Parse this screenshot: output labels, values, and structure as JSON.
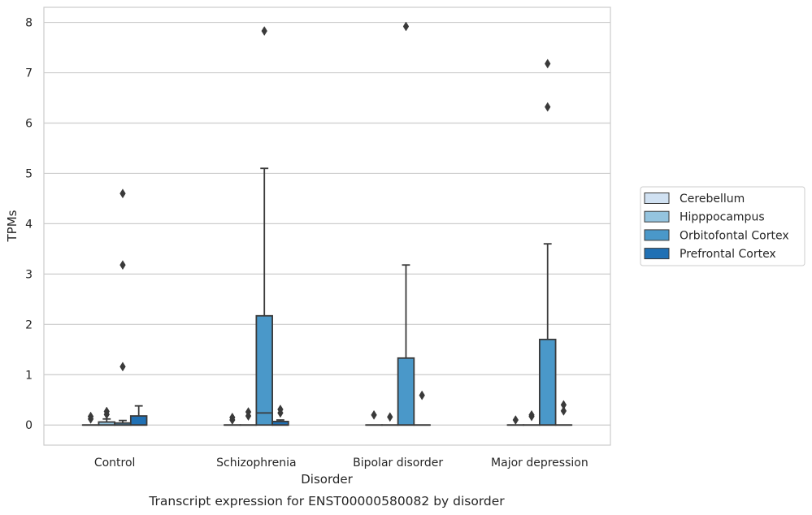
{
  "chart_data": {
    "type": "box",
    "title": "",
    "caption": "Transcript expression for ENST00000580082 by disorder",
    "xlabel": "Disorder",
    "ylabel": "TPMs",
    "ylim": [
      -0.4,
      8.3
    ],
    "yticks": [
      0,
      1,
      2,
      3,
      4,
      5,
      6,
      7,
      8
    ],
    "grid": "horizontal",
    "legend_position": "right",
    "categories": [
      "Control",
      "Schizophrenia",
      "Bipolar disorder",
      "Major depression"
    ],
    "series": [
      {
        "name": "Cerebellum",
        "color": "#d0e1f2",
        "boxes": [
          {
            "category": "Control",
            "q1": 0,
            "median": 0,
            "q3": 0,
            "whisker_low": 0,
            "whisker_high": 0,
            "outliers": [
              0.12,
              0.17
            ]
          },
          {
            "category": "Schizophrenia",
            "q1": 0,
            "median": 0,
            "q3": 0,
            "whisker_low": 0,
            "whisker_high": 0,
            "outliers": [
              0.1,
              0.15
            ]
          },
          {
            "category": "Bipolar disorder",
            "q1": 0,
            "median": 0,
            "q3": 0,
            "whisker_low": 0,
            "whisker_high": 0,
            "outliers": [
              0.2
            ]
          },
          {
            "category": "Major depression",
            "q1": 0,
            "median": 0,
            "q3": 0,
            "whisker_low": 0,
            "whisker_high": 0,
            "outliers": [
              0.1
            ]
          }
        ]
      },
      {
        "name": "Hipppocampus",
        "color": "#94c4df",
        "boxes": [
          {
            "category": "Control",
            "q1": 0,
            "median": 0,
            "q3": 0.06,
            "whisker_low": 0,
            "whisker_high": 0.12,
            "outliers": [
              0.21,
              0.27
            ]
          },
          {
            "category": "Schizophrenia",
            "q1": 0,
            "median": 0,
            "q3": 0,
            "whisker_low": 0,
            "whisker_high": 0,
            "outliers": [
              0.18,
              0.26
            ]
          },
          {
            "category": "Bipolar disorder",
            "q1": 0,
            "median": 0,
            "q3": 0,
            "whisker_low": 0,
            "whisker_high": 0,
            "outliers": [
              0.16
            ]
          },
          {
            "category": "Major depression",
            "q1": 0,
            "median": 0,
            "q3": 0,
            "whisker_low": 0,
            "whisker_high": 0,
            "outliers": [
              0.17,
              0.2
            ]
          }
        ]
      },
      {
        "name": "Orbitofontal Cortex",
        "color": "#4a98c9",
        "boxes": [
          {
            "category": "Control",
            "q1": 0,
            "median": 0,
            "q3": 0.04,
            "whisker_low": 0,
            "whisker_high": 0.09,
            "outliers": [
              1.16,
              3.18,
              4.6
            ]
          },
          {
            "category": "Schizophrenia",
            "q1": 0,
            "median": 0.24,
            "q3": 2.17,
            "whisker_low": 0,
            "whisker_high": 5.1,
            "outliers": [
              7.83
            ]
          },
          {
            "category": "Bipolar disorder",
            "q1": 0,
            "median": 0,
            "q3": 1.33,
            "whisker_low": 0,
            "whisker_high": 3.18,
            "outliers": [
              7.92
            ]
          },
          {
            "category": "Major depression",
            "q1": 0,
            "median": 0,
            "q3": 1.7,
            "whisker_low": 0,
            "whisker_high": 3.6,
            "outliers": [
              6.32,
              7.18
            ]
          }
        ]
      },
      {
        "name": "Prefrontal Cortex",
        "color": "#2070b4",
        "boxes": [
          {
            "category": "Control",
            "q1": 0,
            "median": 0,
            "q3": 0.18,
            "whisker_low": 0,
            "whisker_high": 0.38,
            "outliers": []
          },
          {
            "category": "Schizophrenia",
            "q1": 0,
            "median": 0,
            "q3": 0.07,
            "whisker_low": 0,
            "whisker_high": 0.1,
            "outliers": [
              0.24,
              0.31
            ]
          },
          {
            "category": "Bipolar disorder",
            "q1": 0,
            "median": 0,
            "q3": 0,
            "whisker_low": 0,
            "whisker_high": 0,
            "outliers": [
              0.59
            ]
          },
          {
            "category": "Major depression",
            "q1": 0,
            "median": 0,
            "q3": 0,
            "whisker_low": 0,
            "whisker_high": 0,
            "outliers": [
              0.28,
              0.4
            ]
          }
        ]
      }
    ]
  }
}
